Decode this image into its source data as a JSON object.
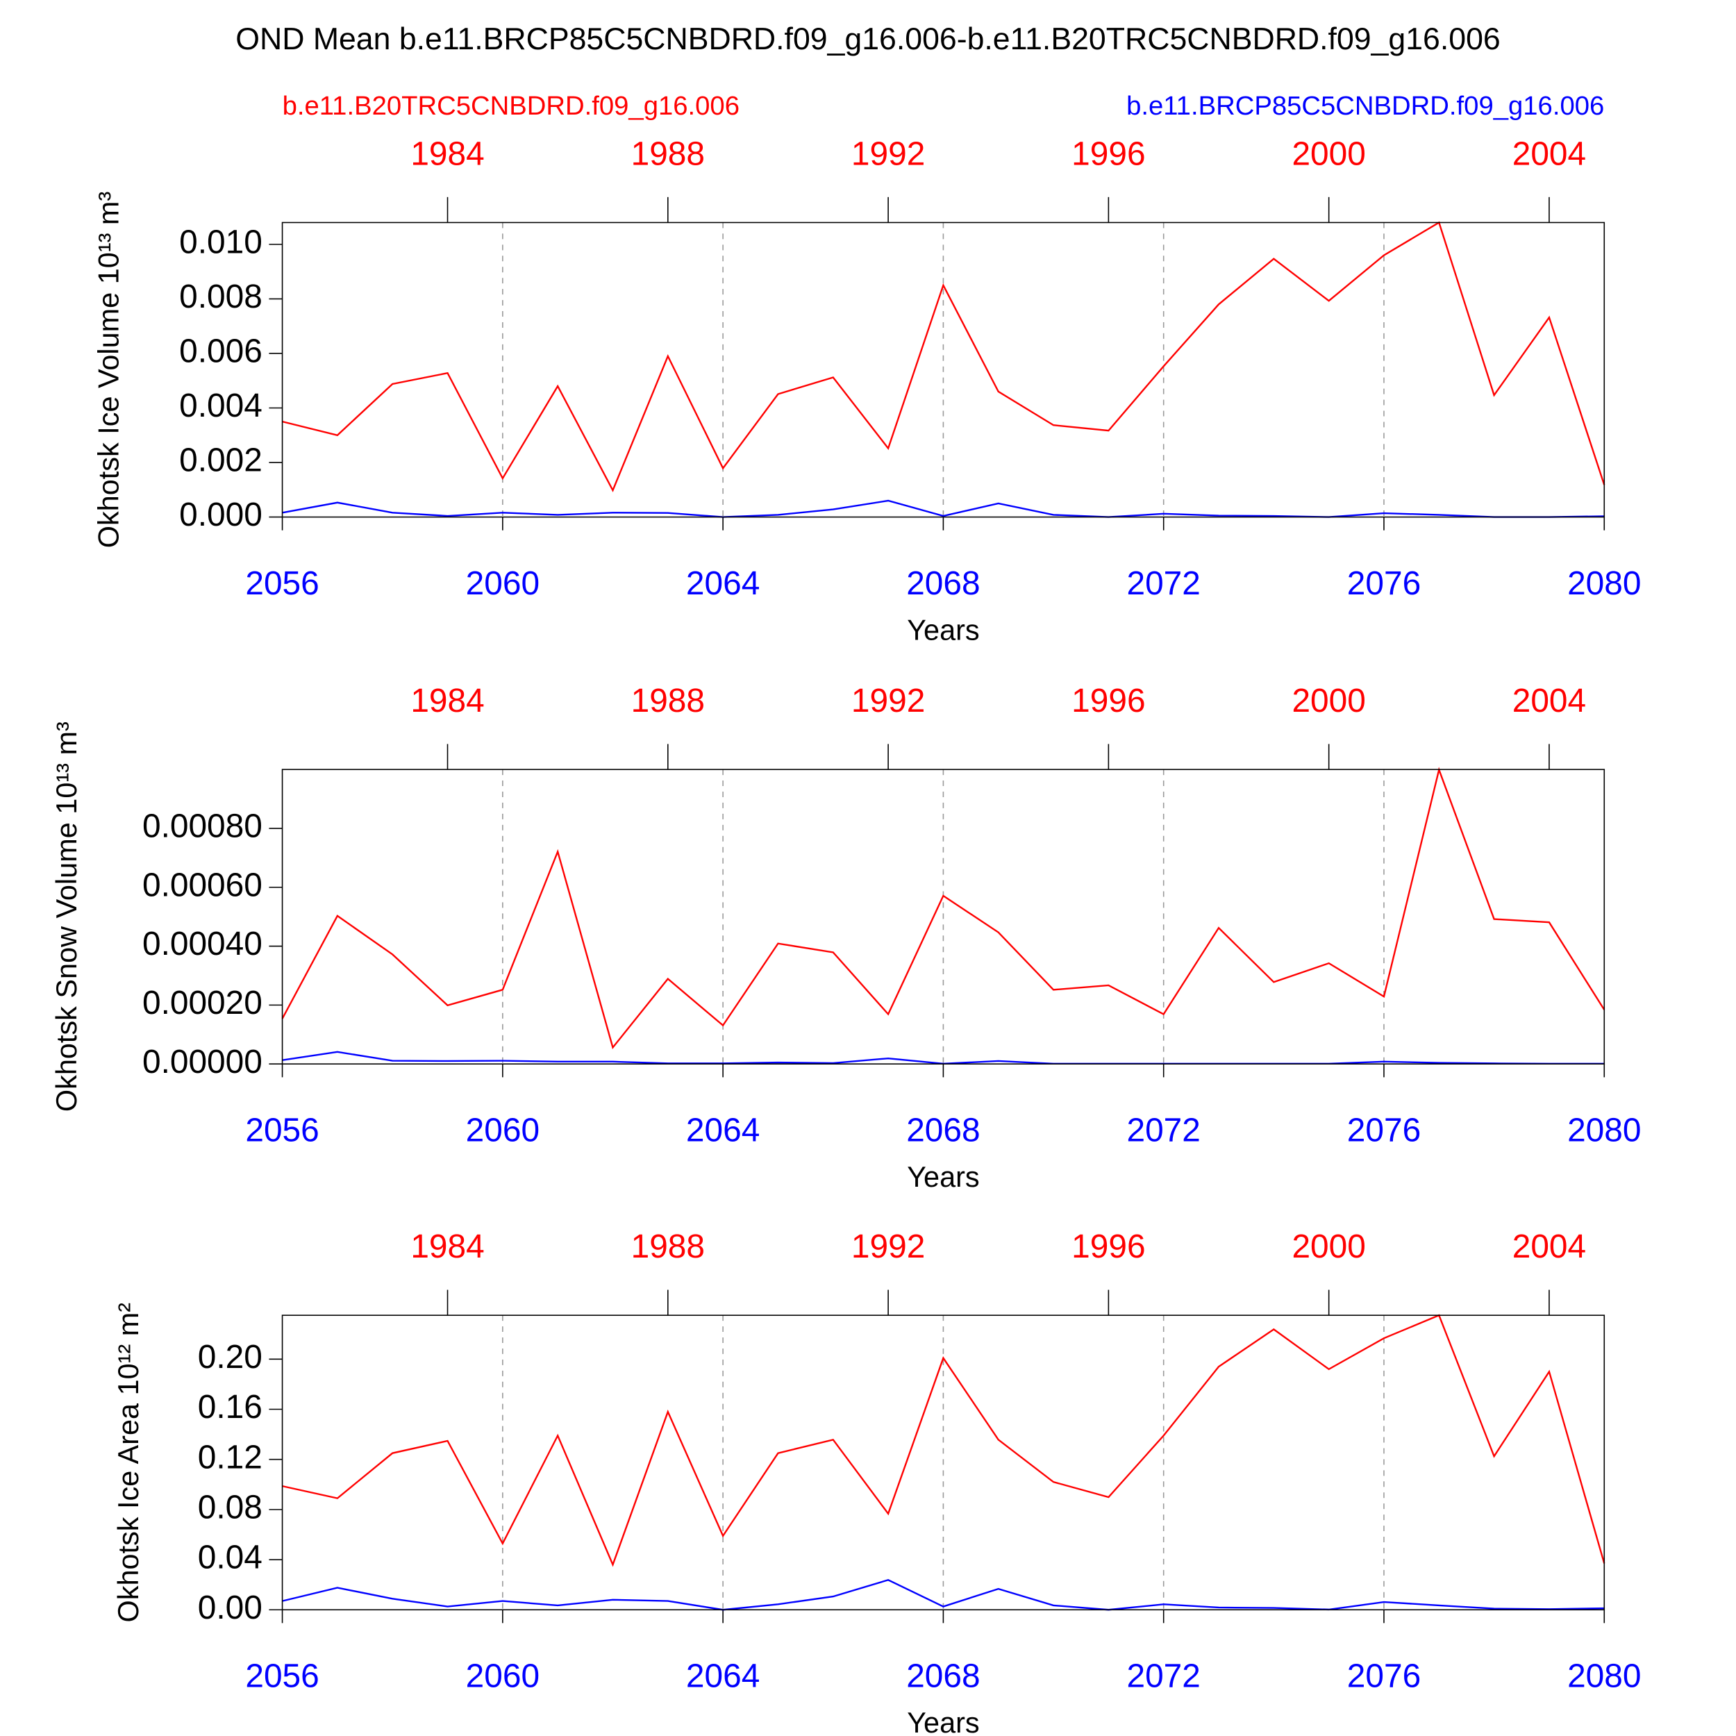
{
  "chart_data": [
    {
      "type": "line",
      "title": "OND Mean b.e11.BRCP85C5CNBDRD.f09_g16.006-b.e11.B20TRC5CNBDRD.f09_g16.006",
      "ylabel": "Okhotsk Ice Volume 10¹³ m³",
      "xlabel": "Years",
      "x": [
        2056,
        2057,
        2058,
        2059,
        2060,
        2061,
        2062,
        2063,
        2064,
        2065,
        2066,
        2067,
        2068,
        2069,
        2070,
        2071,
        2072,
        2073,
        2074,
        2075,
        2076,
        2077,
        2078,
        2079,
        2080
      ],
      "x2": [
        1981,
        1982,
        1983,
        1984,
        1985,
        1986,
        1987,
        1988,
        1989,
        1990,
        1991,
        1992,
        1993,
        1994,
        1995,
        1996,
        1997,
        1998,
        1999,
        2000,
        2001,
        2002,
        2003,
        2004,
        2005
      ],
      "xlim": [
        2056,
        2080
      ],
      "xticks": [
        2056,
        2060,
        2064,
        2068,
        2072,
        2076,
        2080
      ],
      "x2lim": [
        1981,
        2005
      ],
      "x2ticks": [
        1984,
        1988,
        1992,
        1996,
        2000,
        2004
      ],
      "ylim": [
        0,
        0.0108
      ],
      "yticks": [
        {
          "value": 0,
          "label": "0.000"
        },
        {
          "value": 0.002,
          "label": "0.002"
        },
        {
          "value": 0.004,
          "label": "0.004"
        },
        {
          "value": 0.006,
          "label": "0.006"
        },
        {
          "value": 0.008,
          "label": "0.008"
        },
        {
          "value": 0.01,
          "label": "0.010"
        }
      ],
      "xgrid": true,
      "series": [
        {
          "name": "b.e11.B20TRC5CNBDRD.f09_g16.006",
          "color": "#ff0000",
          "axis": "x2",
          "values": [
            0.0035,
            0.003,
            0.00488,
            0.00528,
            0.00142,
            0.0048,
            0.00098,
            0.0059,
            0.00179,
            0.00451,
            0.00512,
            0.00252,
            0.0085,
            0.0046,
            0.00337,
            0.00317,
            0.00553,
            0.0078,
            0.00947,
            0.00793,
            0.0096,
            0.0108,
            0.00447,
            0.00732,
            0.00118
          ]
        },
        {
          "name": "b.e11.BRCP85C5CNBDRD.f09_g16.006",
          "color": "#0000ff",
          "axis": "x",
          "values": [
            0.00016,
            0.00053,
            0.00016,
            4e-05,
            0.00016,
            8e-05,
            0.00016,
            0.00015,
            0,
            8e-05,
            0.00028,
            0.0006,
            4e-05,
            0.0005,
            8e-05,
            0,
            0.00012,
            5e-05,
            4e-05,
            0,
            0.00014,
            8e-05,
            0,
            0,
            3e-05
          ]
        }
      ]
    },
    {
      "type": "line",
      "ylabel": "Okhotsk Snow Volume 10¹³ m³",
      "xlabel": "Years",
      "x": [
        2056,
        2057,
        2058,
        2059,
        2060,
        2061,
        2062,
        2063,
        2064,
        2065,
        2066,
        2067,
        2068,
        2069,
        2070,
        2071,
        2072,
        2073,
        2074,
        2075,
        2076,
        2077,
        2078,
        2079,
        2080
      ],
      "x2": [
        1981,
        1982,
        1983,
        1984,
        1985,
        1986,
        1987,
        1988,
        1989,
        1990,
        1991,
        1992,
        1993,
        1994,
        1995,
        1996,
        1997,
        1998,
        1999,
        2000,
        2001,
        2002,
        2003,
        2004,
        2005
      ],
      "xlim": [
        2056,
        2080
      ],
      "xticks": [
        2056,
        2060,
        2064,
        2068,
        2072,
        2076,
        2080
      ],
      "x2lim": [
        1981,
        2005
      ],
      "x2ticks": [
        1984,
        1988,
        1992,
        1996,
        2000,
        2004
      ],
      "ylim": [
        0,
        0.001
      ],
      "yticks": [
        {
          "value": 0,
          "label": "0.00000"
        },
        {
          "value": 0.0002,
          "label": "0.00020"
        },
        {
          "value": 0.0004,
          "label": "0.00040"
        },
        {
          "value": 0.0006,
          "label": "0.00060"
        },
        {
          "value": 0.0008,
          "label": "0.00080"
        }
      ],
      "xgrid": true,
      "series": [
        {
          "color": "#ff0000",
          "axis": "x2",
          "values": [
            0.000154,
            0.000503,
            0.000372,
            0.000199,
            0.000252,
            0.000721,
            5.6e-05,
            0.000289,
            0.000131,
            0.000409,
            0.000379,
            0.000169,
            0.000571,
            0.000447,
            0.000252,
            0.000267,
            0.000169,
            0.000462,
            0.000278,
            0.000342,
            0.000229,
            0.000999,
            0.000492,
            0.000481,
            0.000184
          ]
        },
        {
          "color": "#0000ff",
          "axis": "x",
          "values": [
            1.3e-05,
            4.1e-05,
            1.1e-05,
            1e-05,
            1.1e-05,
            8e-06,
            8e-06,
            2e-06,
            2e-06,
            5e-06,
            3e-06,
            1.9e-05,
            1e-06,
            1e-05,
            1e-06,
            1e-06,
            1e-06,
            1e-06,
            1e-06,
            1e-06,
            8e-06,
            4e-06,
            2e-06,
            1e-06,
            1e-06
          ]
        }
      ]
    },
    {
      "type": "line",
      "ylabel": "Okhotsk Ice Area 10¹² m²",
      "xlabel": "Years",
      "x": [
        2056,
        2057,
        2058,
        2059,
        2060,
        2061,
        2062,
        2063,
        2064,
        2065,
        2066,
        2067,
        2068,
        2069,
        2070,
        2071,
        2072,
        2073,
        2074,
        2075,
        2076,
        2077,
        2078,
        2079,
        2080
      ],
      "x2": [
        1981,
        1982,
        1983,
        1984,
        1985,
        1986,
        1987,
        1988,
        1989,
        1990,
        1991,
        1992,
        1993,
        1994,
        1995,
        1996,
        1997,
        1998,
        1999,
        2000,
        2001,
        2002,
        2003,
        2004,
        2005
      ],
      "xlim": [
        2056,
        2080
      ],
      "xticks": [
        2056,
        2060,
        2064,
        2068,
        2072,
        2076,
        2080
      ],
      "x2lim": [
        1981,
        2005
      ],
      "x2ticks": [
        1984,
        1988,
        1992,
        1996,
        2000,
        2004
      ],
      "ylim": [
        0,
        0.235
      ],
      "yticks": [
        {
          "value": 0,
          "label": "0.00"
        },
        {
          "value": 0.04,
          "label": "0.04"
        },
        {
          "value": 0.08,
          "label": "0.08"
        },
        {
          "value": 0.12,
          "label": "0.12"
        },
        {
          "value": 0.16,
          "label": "0.16"
        },
        {
          "value": 0.2,
          "label": "0.20"
        }
      ],
      "xgrid": true,
      "series": [
        {
          "color": "#ff0000",
          "axis": "x2",
          "values": [
            0.0987,
            0.089,
            0.125,
            0.1348,
            0.0529,
            0.139,
            0.036,
            0.158,
            0.059,
            0.125,
            0.1357,
            0.0767,
            0.2009,
            0.1357,
            0.102,
            0.0899,
            0.139,
            0.194,
            0.2238,
            0.192,
            0.2167,
            0.235,
            0.1225,
            0.19,
            0.037
          ]
        },
        {
          "color": "#0000ff",
          "axis": "x",
          "values": [
            0.007,
            0.0176,
            0.0088,
            0.0026,
            0.007,
            0.0035,
            0.008,
            0.007,
            0,
            0.0044,
            0.0106,
            0.0238,
            0.0026,
            0.0167,
            0.0035,
            0,
            0.0044,
            0.0018,
            0.0015,
            0.0002,
            0.0062,
            0.0035,
            0.0009,
            0.0005,
            0.0012
          ]
        }
      ]
    }
  ]
}
